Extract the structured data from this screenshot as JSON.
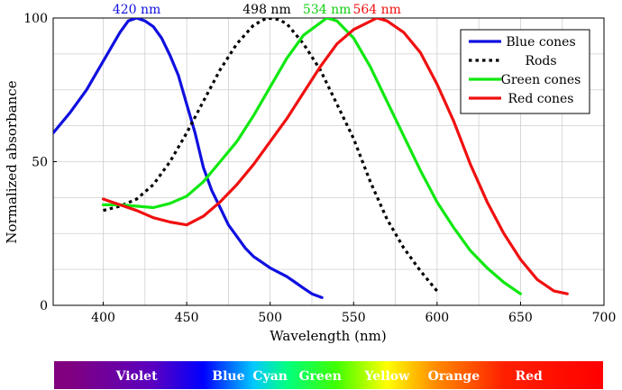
{
  "chart_data": {
    "type": "line",
    "xlabel": "Wavelength (nm)",
    "ylabel": "Normalized absorbance",
    "xlim": [
      370,
      700
    ],
    "ylim": [
      0,
      100
    ],
    "x_ticks": [
      400,
      450,
      500,
      550,
      600,
      650,
      700
    ],
    "y_ticks": [
      0,
      50,
      100
    ],
    "grid": true,
    "legend_placement": "top-right",
    "series": [
      {
        "name": "Blue cones",
        "color": "#1010e0",
        "dash": "solid",
        "points": [
          [
            370,
            60
          ],
          [
            380,
            67
          ],
          [
            390,
            75
          ],
          [
            400,
            85
          ],
          [
            405,
            90
          ],
          [
            410,
            95
          ],
          [
            415,
            99
          ],
          [
            420,
            100
          ],
          [
            425,
            99
          ],
          [
            430,
            97
          ],
          [
            435,
            93
          ],
          [
            440,
            87
          ],
          [
            445,
            80
          ],
          [
            450,
            70
          ],
          [
            455,
            60
          ],
          [
            460,
            48
          ],
          [
            465,
            40
          ],
          [
            470,
            34
          ],
          [
            475,
            28
          ],
          [
            480,
            24
          ],
          [
            485,
            20
          ],
          [
            490,
            17
          ],
          [
            495,
            15
          ],
          [
            500,
            13
          ],
          [
            505,
            11.5
          ],
          [
            510,
            10
          ],
          [
            515,
            8
          ],
          [
            520,
            6
          ],
          [
            525,
            4
          ],
          [
            531,
            2.7
          ]
        ]
      },
      {
        "name": "Rods",
        "color": "#000000",
        "dash": "dotted",
        "points": [
          [
            400,
            33
          ],
          [
            410,
            34.5
          ],
          [
            420,
            37
          ],
          [
            430,
            42
          ],
          [
            440,
            50
          ],
          [
            450,
            60
          ],
          [
            460,
            71
          ],
          [
            470,
            82
          ],
          [
            480,
            91
          ],
          [
            490,
            97.5
          ],
          [
            498,
            100
          ],
          [
            505,
            99.5
          ],
          [
            510,
            98
          ],
          [
            520,
            91
          ],
          [
            530,
            82
          ],
          [
            540,
            70
          ],
          [
            550,
            58
          ],
          [
            560,
            43
          ],
          [
            570,
            30
          ],
          [
            580,
            20
          ],
          [
            590,
            12
          ],
          [
            600,
            5
          ]
        ]
      },
      {
        "name": "Green cones",
        "color": "#10e810",
        "dash": "solid",
        "points": [
          [
            400,
            35
          ],
          [
            410,
            35
          ],
          [
            420,
            34.5
          ],
          [
            430,
            34
          ],
          [
            440,
            35.5
          ],
          [
            450,
            38
          ],
          [
            460,
            43
          ],
          [
            470,
            50
          ],
          [
            480,
            57
          ],
          [
            490,
            66
          ],
          [
            500,
            76
          ],
          [
            510,
            86
          ],
          [
            520,
            94
          ],
          [
            534,
            100
          ],
          [
            540,
            99
          ],
          [
            550,
            93
          ],
          [
            560,
            83
          ],
          [
            570,
            71
          ],
          [
            580,
            59
          ],
          [
            590,
            47
          ],
          [
            600,
            36
          ],
          [
            610,
            27
          ],
          [
            620,
            19
          ],
          [
            630,
            13
          ],
          [
            640,
            8
          ],
          [
            650,
            4
          ]
        ]
      },
      {
        "name": "Red cones",
        "color": "#f01010",
        "dash": "solid",
        "points": [
          [
            400,
            37
          ],
          [
            410,
            35
          ],
          [
            420,
            33
          ],
          [
            430,
            30.5
          ],
          [
            440,
            29
          ],
          [
            450,
            28
          ],
          [
            460,
            31
          ],
          [
            470,
            36
          ],
          [
            480,
            42
          ],
          [
            490,
            49
          ],
          [
            500,
            57
          ],
          [
            510,
            65
          ],
          [
            520,
            74
          ],
          [
            530,
            83
          ],
          [
            540,
            91
          ],
          [
            550,
            96
          ],
          [
            564,
            100
          ],
          [
            570,
            99
          ],
          [
            580,
            95
          ],
          [
            590,
            88
          ],
          [
            600,
            77
          ],
          [
            610,
            64
          ],
          [
            620,
            49
          ],
          [
            630,
            36
          ],
          [
            640,
            25
          ],
          [
            650,
            16
          ],
          [
            660,
            9
          ],
          [
            670,
            5
          ],
          [
            678,
            4
          ]
        ]
      }
    ],
    "peak_labels": [
      {
        "text": "420 nm",
        "x": 420,
        "color": "#1010e0"
      },
      {
        "text": "498 nm",
        "x": 498,
        "color": "#000000"
      },
      {
        "text": "534 nm",
        "x": 534,
        "color": "#10d010"
      },
      {
        "text": "564 nm",
        "x": 564,
        "color": "#f01010"
      }
    ],
    "spectrum_bar": {
      "labels": [
        {
          "text": "Violet",
          "x": 420
        },
        {
          "text": "Blue",
          "x": 475
        },
        {
          "text": "Cyan",
          "x": 500
        },
        {
          "text": "Green",
          "x": 530
        },
        {
          "text": "Yellow",
          "x": 570
        },
        {
          "text": "Orange",
          "x": 610
        },
        {
          "text": "Red",
          "x": 655
        }
      ],
      "color_stops": [
        {
          "x": 380,
          "color": "#800080"
        },
        {
          "x": 430,
          "color": "#5a00c0"
        },
        {
          "x": 460,
          "color": "#0000ff"
        },
        {
          "x": 490,
          "color": "#00c8ff"
        },
        {
          "x": 510,
          "color": "#00ff80"
        },
        {
          "x": 540,
          "color": "#40ff00"
        },
        {
          "x": 570,
          "color": "#ffff00"
        },
        {
          "x": 600,
          "color": "#ff8800"
        },
        {
          "x": 640,
          "color": "#ff2000"
        },
        {
          "x": 700,
          "color": "#ff0000"
        }
      ]
    }
  }
}
